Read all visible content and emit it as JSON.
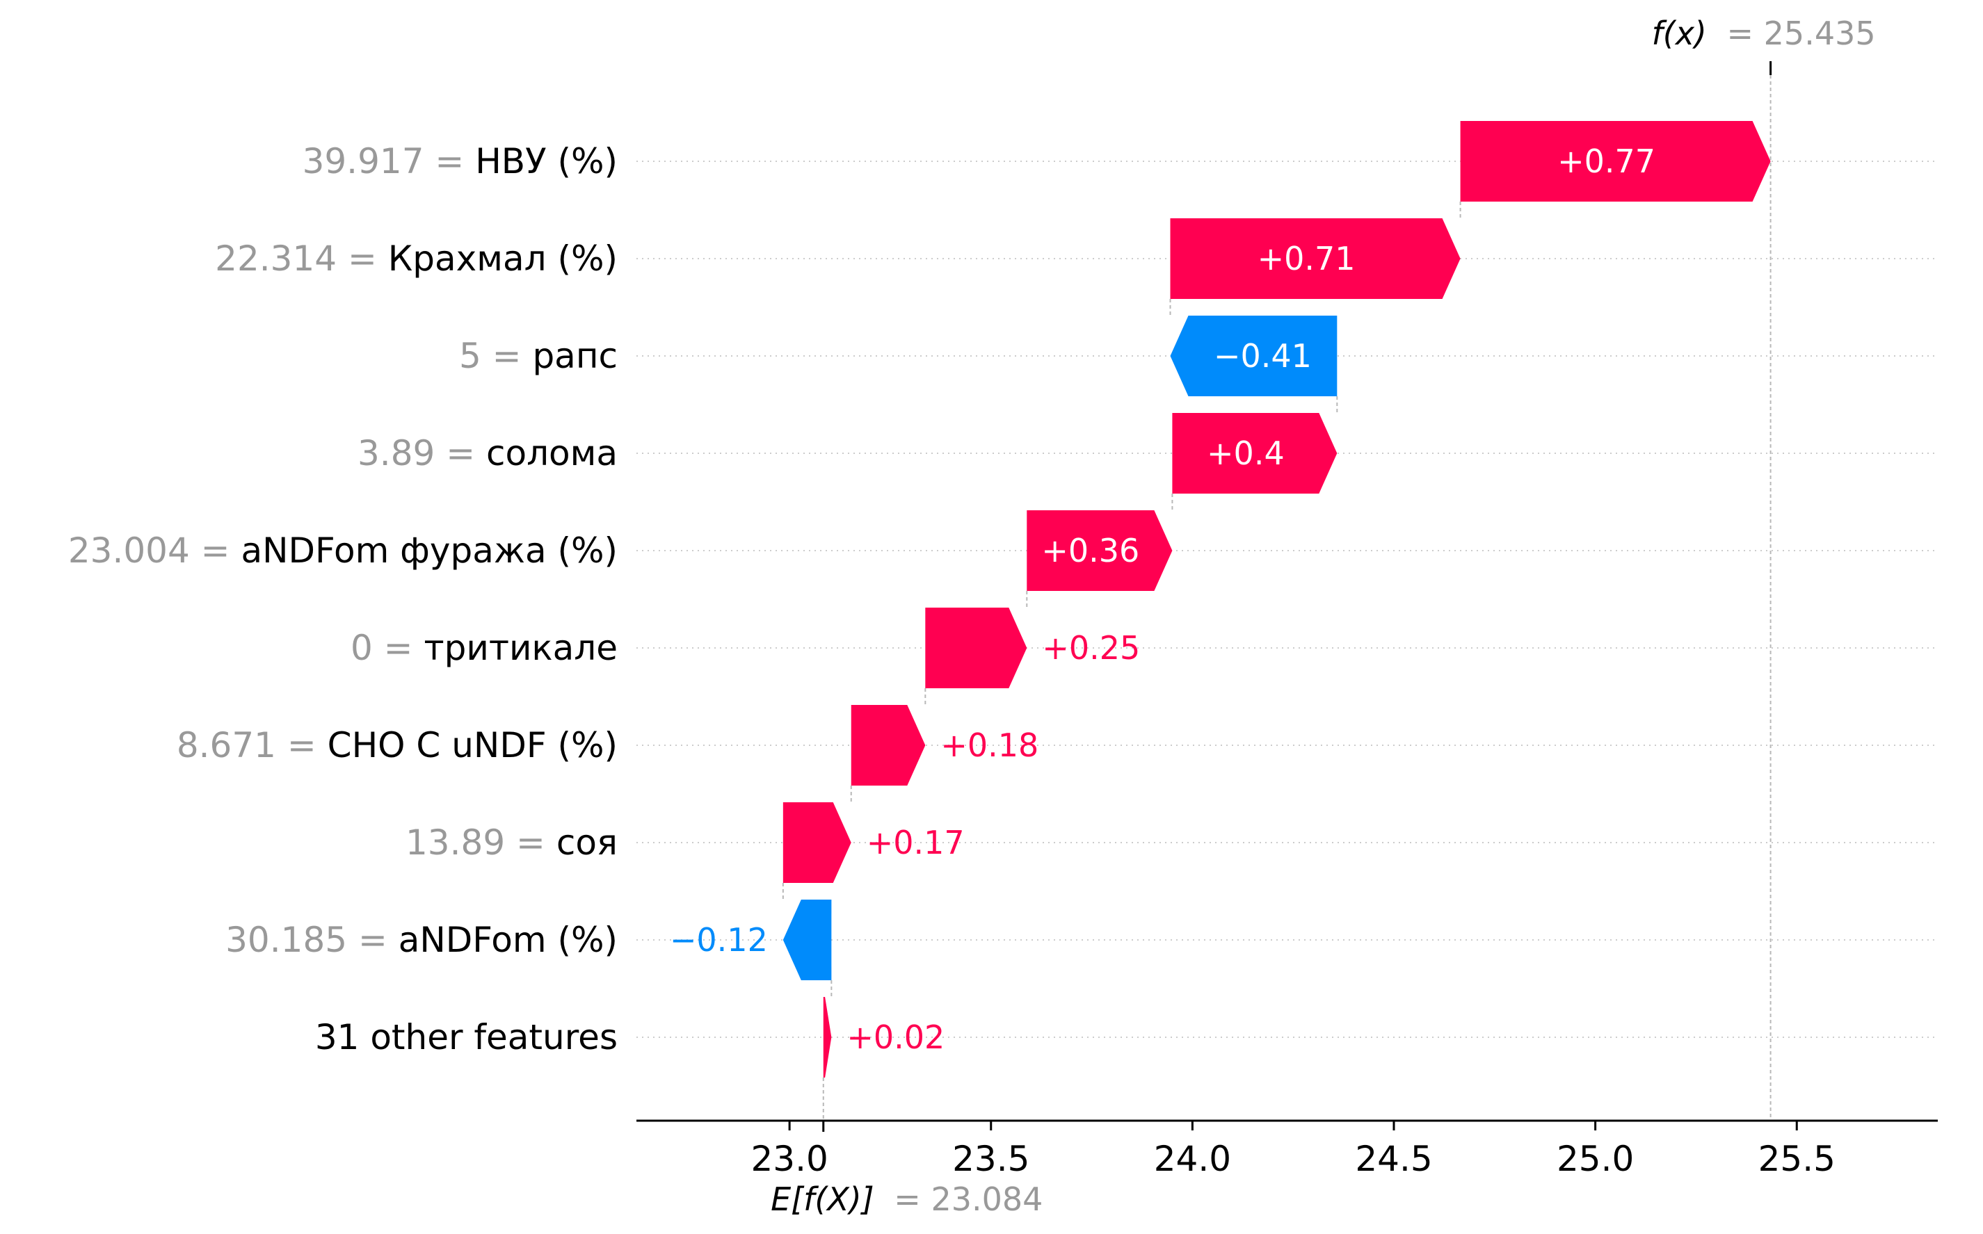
{
  "chart_data": {
    "type": "waterfall",
    "fx": {
      "label": "f(x)",
      "value_text": "= 25.435",
      "value": 25.435
    },
    "base": {
      "label": "E[f(X)]",
      "value_text": "= 23.084",
      "value": 23.084
    },
    "xlim": [
      22.62,
      25.85
    ],
    "xticks": [
      23.0,
      23.5,
      24.0,
      24.5,
      25.0,
      25.5
    ],
    "xtick_labels": [
      "23.0",
      "23.5",
      "24.0",
      "24.5",
      "25.0",
      "25.5"
    ],
    "colors": {
      "positive": "#ff0051",
      "negative": "#008bfb",
      "value_gray": "#999999",
      "label_black": "#000000",
      "guide": "#b8b8b8"
    },
    "features": [
      {
        "value": "39.917 =",
        "name": "НВУ (%)",
        "shap": 0.77,
        "label": "+0.77",
        "start": 24.665,
        "end": 25.435
      },
      {
        "value": "22.314 =",
        "name": "Крахмал (%)",
        "shap": 0.71,
        "label": "+0.71",
        "start": 23.945,
        "end": 24.665
      },
      {
        "value": "5 =",
        "name": "рапс",
        "shap": -0.41,
        "label": "−0.41",
        "start": 24.359,
        "end": 23.945
      },
      {
        "value": "3.89 =",
        "name": "солома",
        "shap": 0.4,
        "label": "+0.4",
        "start": 23.95,
        "end": 24.359
      },
      {
        "value": "23.004 =",
        "name": "aNDFom фуража (%)",
        "shap": 0.36,
        "label": "+0.36",
        "start": 23.589,
        "end": 23.95
      },
      {
        "value": "0 =",
        "name": "тритикале",
        "shap": 0.25,
        "label": "+0.25",
        "start": 23.337,
        "end": 23.589
      },
      {
        "value": "8.671 =",
        "name": "CHO C uNDF (%)",
        "shap": 0.18,
        "label": "+0.18",
        "start": 23.153,
        "end": 23.337
      },
      {
        "value": "13.89 =",
        "name": "соя",
        "shap": 0.17,
        "label": "+0.17",
        "start": 22.984,
        "end": 23.153
      },
      {
        "value": "30.185 =",
        "name": "aNDFom (%)",
        "shap": -0.12,
        "label": "−0.12",
        "start": 23.104,
        "end": 22.984
      },
      {
        "value": "",
        "name": "31 other features",
        "shap": 0.02,
        "label": "+0.02",
        "start": 23.084,
        "end": 23.104
      }
    ]
  }
}
